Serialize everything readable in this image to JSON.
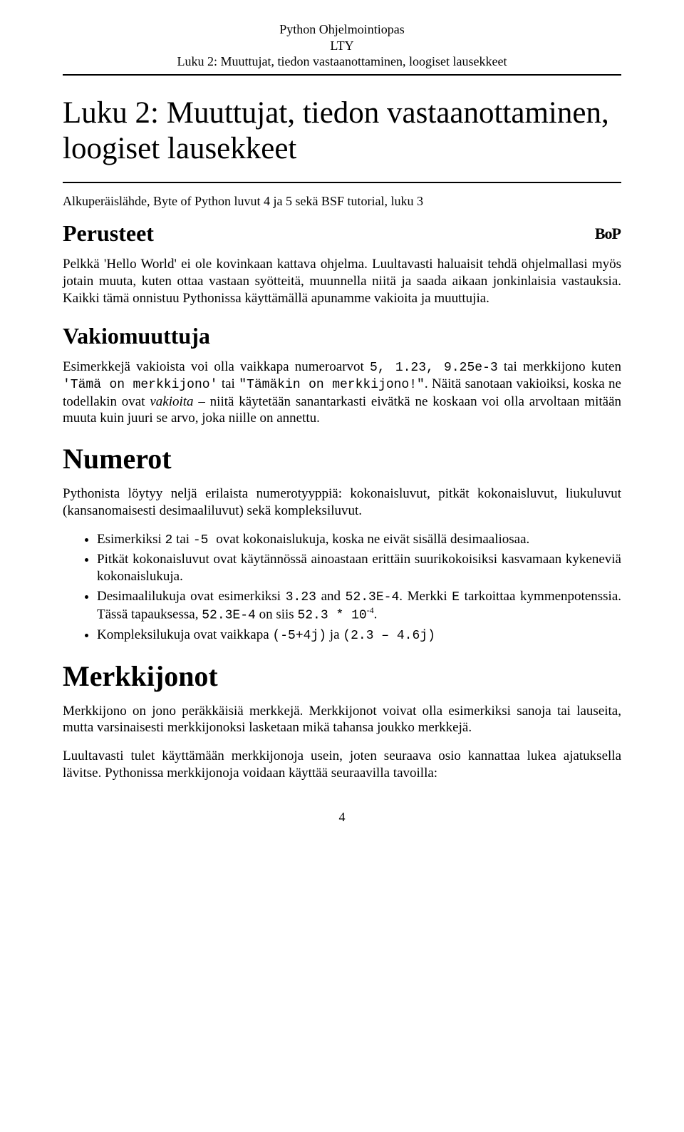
{
  "header": {
    "line1": "Python Ohjelmointiopas",
    "line2": "LTY",
    "line3": "Luku 2: Muuttujat, tiedon vastaanottaminen, loogiset lausekkeet"
  },
  "title": "Luku 2: Muuttujat, tiedon vastaanottaminen, loogiset lausekkeet",
  "subtitle": "Alkuperäislähde, Byte of Python luvut 4 ja 5 sekä BSF tutorial, luku 3",
  "bop_label": "BoP",
  "sections": {
    "perusteet": "Perusteet",
    "vakiomuuttuja": "Vakiomuuttuja",
    "numerot": "Numerot",
    "merkkijonot": "Merkkijonot"
  },
  "p": {
    "perusteet": "Pelkkä 'Hello World' ei ole kovinkaan kattava ohjelma. Luultavasti haluaisit tehdä ohjelmallasi myös jotain muuta, kuten ottaa vastaan syötteitä, muunnella niitä ja saada aikaan jonkinlaisia vastauksia. Kaikki tämä onnistuu Pythonissa käyttämällä apunamme vakioita ja muuttujia.",
    "vakio_pre": "Esimerkkejä vakioista voi olla vaikkapa numeroarvot ",
    "vakio_c1": "5, 1.23, 9.25e-3",
    "vakio_mid1": " tai merkkijono kuten ",
    "vakio_c2": "'Tämä on merkkijono'",
    "vakio_mid2": " tai ",
    "vakio_c3": "\"Tämäkin on merkkijono!\"",
    "vakio_post1": ". Näitä sanotaan vakioiksi, koska ne todellakin ovat ",
    "vakio_em": "vakioita",
    "vakio_post2": " – niitä käytetään sanantarkasti eivätkä ne koskaan voi olla arvoltaan mitään muuta kuin juuri se arvo, joka niille on annettu.",
    "numerot_intro": "Pythonista löytyy neljä erilaista numerotyyppiä: kokonaisluvut, pitkät kokonaisluvut, liukuluvut (kansanomaisesti desimaaliluvut) sekä kompleksiluvut.",
    "merkki_p1": "Merkkijono on jono peräkkäisiä merkkejä. Merkkijonot voivat olla esimerkiksi sanoja tai lauseita, mutta varsinaisesti merkkijonoksi lasketaan mikä tahansa joukko merkkejä.",
    "merkki_p2": "Luultavasti tulet käyttämään merkkijonoja usein, joten seuraava osio kannattaa lukea ajatuksella lävitse. Pythonissa merkkijonoja voidaan käyttää seuraavilla tavoilla:"
  },
  "bullets": {
    "b1_pre": "Esimerkiksi ",
    "b1_c1": "2",
    "b1_mid": " tai ",
    "b1_c2": "-5 ",
    "b1_post": " ovat kokonaislukuja, koska ne eivät sisällä desimaaliosaa.",
    "b2": "Pitkät kokonaisluvut ovat käytännössä ainoastaan erittäin suurikokoisiksi kasvamaan kykeneviä kokonaislukuja.",
    "b3_pre": "Desimaalilukuja ovat esimerkiksi ",
    "b3_c1": "3.23",
    "b3_mid1": " and ",
    "b3_c2": "52.3E-4",
    "b3_mid2": ". Merkki ",
    "b3_c3": "E",
    "b3_mid3": " tarkoittaa kymmenpotenssia. Tässä tapauksessa, ",
    "b3_c4": "52.3E-4",
    "b3_mid4": " on siis ",
    "b3_c5": "52.3 * 10",
    "b3_sup": "-4",
    "b3_end": ".",
    "b4_pre": "Kompleksilukuja ovat vaikkapa ",
    "b4_c1": "(-5+4j)",
    "b4_mid": " ja ",
    "b4_c2": "(2.3 – 4.6j)"
  },
  "page_number": "4"
}
